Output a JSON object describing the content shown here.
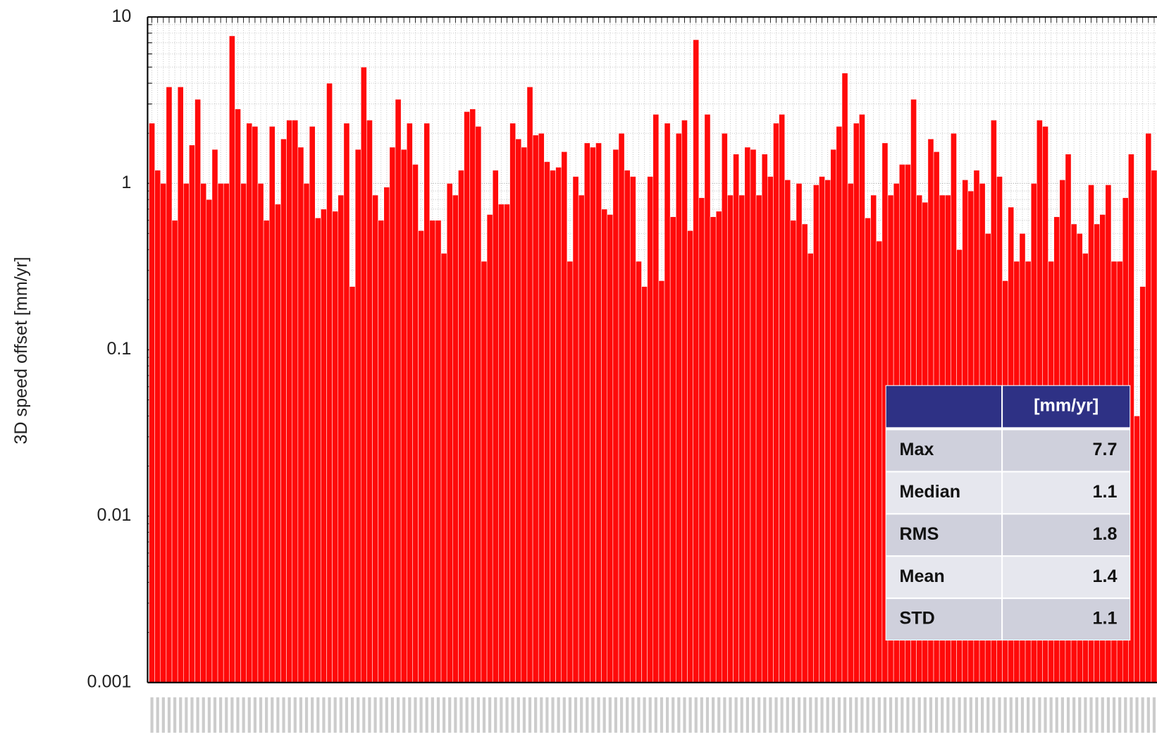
{
  "chart_data": {
    "type": "bar",
    "y_label": "3D speed offset [mm/yr]",
    "log_scale": true,
    "grid": true,
    "color": "#ff0a0a",
    "ylim": [
      0.001,
      10
    ],
    "yticks": [
      0.001,
      0.01,
      0.1,
      1,
      10
    ],
    "values": [
      2.3,
      1.2,
      1.0,
      3.8,
      0.6,
      3.8,
      1.0,
      1.7,
      3.2,
      1.0,
      0.8,
      1.6,
      1.0,
      1.0,
      7.7,
      2.8,
      1.0,
      2.3,
      2.2,
      1.0,
      0.6,
      2.2,
      0.75,
      1.85,
      2.4,
      2.4,
      1.65,
      1.0,
      2.2,
      0.62,
      0.7,
      4.0,
      0.68,
      0.85,
      2.3,
      0.24,
      1.6,
      5.0,
      2.4,
      0.85,
      0.6,
      0.95,
      1.65,
      3.2,
      1.6,
      2.3,
      1.3,
      0.52,
      2.3,
      0.6,
      0.6,
      0.38,
      1.0,
      0.85,
      1.2,
      2.7,
      2.8,
      2.2,
      0.34,
      0.65,
      1.2,
      0.75,
      0.75,
      2.3,
      1.85,
      1.65,
      3.8,
      1.95,
      2.0,
      1.35,
      1.2,
      1.25,
      1.55,
      0.34,
      1.1,
      0.85,
      1.75,
      1.65,
      1.75,
      0.7,
      0.65,
      1.6,
      2.0,
      1.2,
      1.1,
      0.34,
      0.24,
      1.1,
      2.6,
      0.26,
      2.3,
      0.63,
      2.0,
      2.4,
      0.52,
      7.3,
      0.82,
      2.6,
      0.63,
      0.68,
      2.0,
      0.85,
      1.5,
      0.85,
      1.65,
      1.6,
      0.85,
      1.5,
      1.1,
      2.3,
      2.6,
      1.05,
      0.6,
      1.0,
      0.57,
      0.38,
      0.98,
      1.1,
      1.05,
      1.6,
      2.2,
      4.6,
      1.0,
      2.3,
      2.6,
      0.62,
      0.85,
      0.45,
      1.75,
      0.85,
      1.0,
      1.3,
      1.3,
      3.2,
      0.85,
      0.77,
      1.85,
      1.55,
      0.85,
      0.85,
      2.0,
      0.4,
      1.05,
      0.9,
      1.2,
      1.0,
      0.5,
      2.4,
      1.1,
      0.26,
      0.72,
      0.34,
      0.5,
      0.34,
      1.0,
      2.4,
      2.2,
      0.34,
      0.63,
      1.05,
      1.5,
      0.57,
      0.5,
      0.38,
      0.98,
      0.57,
      0.65,
      0.98,
      0.34,
      0.34,
      0.82,
      1.5,
      0.04,
      0.24,
      2.0,
      1.2
    ],
    "stats_table": {
      "header": [
        null,
        "[mm/yr]"
      ],
      "rows": [
        [
          "Max",
          7.7
        ],
        [
          "Median",
          1.1
        ],
        [
          "RMS",
          1.8
        ],
        [
          "Mean",
          1.4
        ],
        [
          "STD",
          1.1
        ]
      ]
    }
  }
}
